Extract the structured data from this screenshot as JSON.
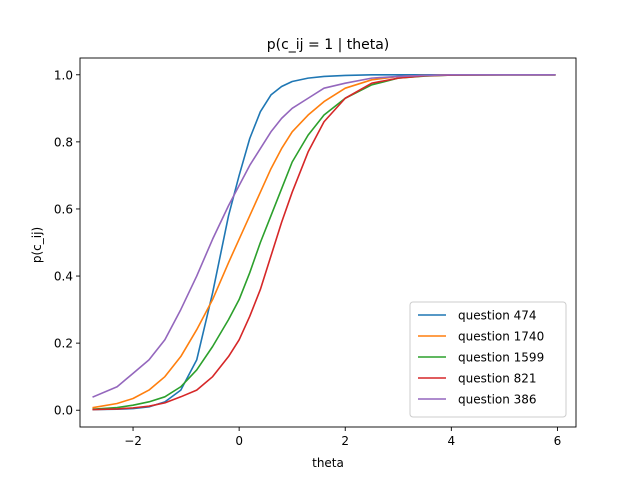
{
  "chart_data": {
    "type": "line",
    "title": "p(c_ij = 1 | theta)",
    "xlabel": "theta",
    "ylabel": "p(c_ij)",
    "xlim": [
      -3.0,
      6.35
    ],
    "ylim": [
      -0.05,
      1.05
    ],
    "xticks": [
      -2,
      0,
      2,
      4,
      6
    ],
    "xtick_labels": [
      "−2",
      "0",
      "2",
      "4",
      "6"
    ],
    "yticks": [
      0.0,
      0.2,
      0.4,
      0.6,
      0.8,
      1.0
    ],
    "ytick_labels": [
      "0.0",
      "0.2",
      "0.4",
      "0.6",
      "0.8",
      "1.0"
    ],
    "grid": false,
    "legend_position": "lower-right",
    "x": [
      -2.75,
      -2.3,
      -2.0,
      -1.7,
      -1.4,
      -1.1,
      -0.8,
      -0.5,
      -0.2,
      0.0,
      0.2,
      0.4,
      0.6,
      0.8,
      1.0,
      1.3,
      1.6,
      2.0,
      2.5,
      3.0,
      3.5,
      4.0,
      5.0,
      5.95
    ],
    "series": [
      {
        "name": "question 474",
        "color": "#1f77b4",
        "values": [
          0.002,
          0.003,
          0.005,
          0.01,
          0.025,
          0.06,
          0.15,
          0.35,
          0.58,
          0.7,
          0.81,
          0.89,
          0.94,
          0.965,
          0.98,
          0.99,
          0.995,
          0.998,
          1.0,
          1.0,
          1.0,
          1.0,
          1.0,
          1.0
        ]
      },
      {
        "name": "question 1740",
        "color": "#ff7f0e",
        "values": [
          0.008,
          0.02,
          0.035,
          0.06,
          0.1,
          0.16,
          0.24,
          0.33,
          0.44,
          0.51,
          0.58,
          0.65,
          0.72,
          0.78,
          0.83,
          0.88,
          0.92,
          0.96,
          0.985,
          0.995,
          0.998,
          1.0,
          1.0,
          1.0
        ]
      },
      {
        "name": "question 1599",
        "color": "#2ca02c",
        "values": [
          0.003,
          0.008,
          0.015,
          0.025,
          0.04,
          0.07,
          0.12,
          0.19,
          0.27,
          0.33,
          0.41,
          0.5,
          0.58,
          0.66,
          0.74,
          0.82,
          0.88,
          0.93,
          0.97,
          0.99,
          0.996,
          0.999,
          1.0,
          1.0
        ]
      },
      {
        "name": "question 821",
        "color": "#d62728",
        "values": [
          0.002,
          0.004,
          0.007,
          0.012,
          0.022,
          0.04,
          0.06,
          0.1,
          0.16,
          0.21,
          0.28,
          0.36,
          0.46,
          0.56,
          0.65,
          0.77,
          0.86,
          0.93,
          0.975,
          0.99,
          0.997,
          0.999,
          1.0,
          1.0
        ]
      },
      {
        "name": "question 386",
        "color": "#9467bd",
        "values": [
          0.04,
          0.07,
          0.11,
          0.15,
          0.21,
          0.3,
          0.4,
          0.51,
          0.61,
          0.67,
          0.73,
          0.78,
          0.83,
          0.87,
          0.9,
          0.93,
          0.96,
          0.975,
          0.99,
          0.995,
          0.998,
          1.0,
          1.0,
          1.0
        ]
      }
    ]
  }
}
